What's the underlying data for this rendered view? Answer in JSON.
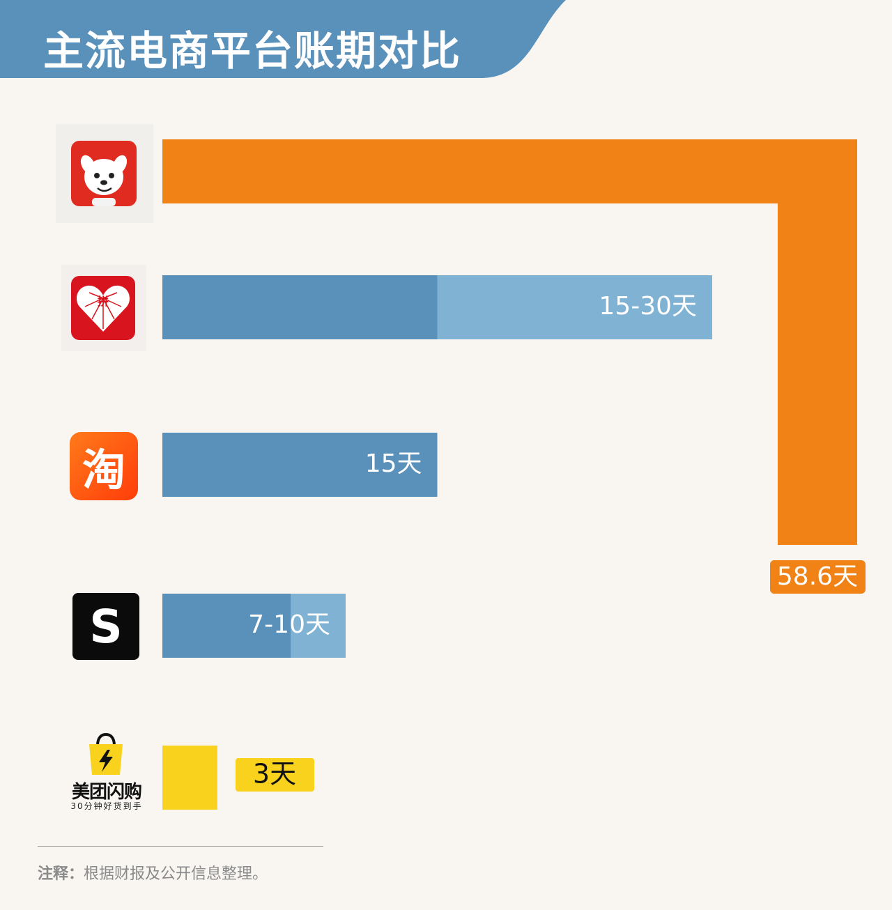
{
  "title": "主流电商平台账期对比",
  "colors": {
    "header": "#5a91bb",
    "bar_base": "#5a91bb",
    "bar_range": "#7fb2d3",
    "jd": "#f08216",
    "meituan": "#f8d21c",
    "background": "#f9f6f2"
  },
  "platforms": [
    {
      "icon": "jd-joy-dog-icon"
    },
    {
      "icon": "pinduoduo-heart-icon",
      "glyph": "拼"
    },
    {
      "icon": "taobao-icon",
      "glyph": "淘"
    },
    {
      "icon": "shein-icon",
      "glyph": "S"
    },
    {
      "icon": "meituan-shangou-bag-icon",
      "name": "美团闪购",
      "slogan": "30分钟好货到手"
    }
  ],
  "chart_data": {
    "type": "bar",
    "orientation": "horizontal",
    "unit": "天",
    "bars": [
      {
        "value": 58.6,
        "label": "58.6天"
      },
      {
        "min": 15,
        "max": 30,
        "label": "15-30天"
      },
      {
        "value": 15,
        "label": "15天"
      },
      {
        "min": 7,
        "max": 10,
        "label": "7-10天"
      },
      {
        "value": 3,
        "label": "3天"
      }
    ]
  },
  "note": {
    "label": "注释：",
    "text": "根据财报及公开信息整理。"
  }
}
